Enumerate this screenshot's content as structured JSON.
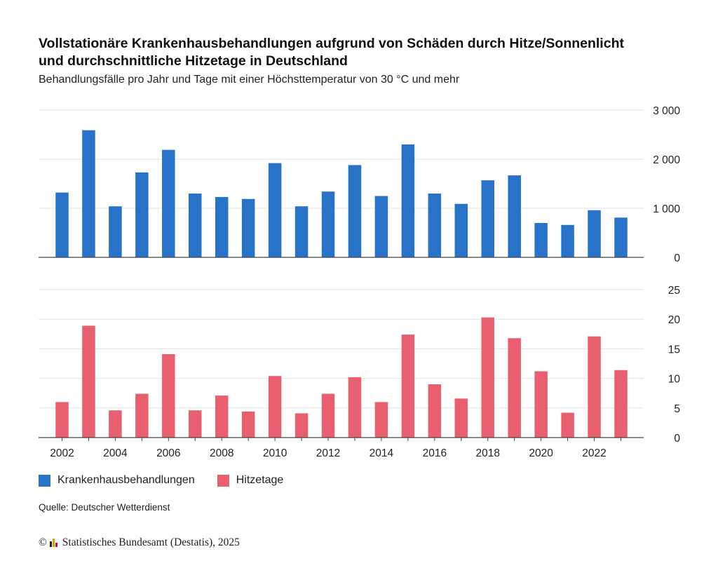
{
  "title_lines": [
    "Vollstationäre Krankenhausbehandlungen aufgrund von Schäden durch Hitze/Sonnenlicht",
    "und durchschnittliche Hitzetage in Deutschland"
  ],
  "subtitle": "Behandlungsfälle pro Jahr und Tage mit einer Höchsttemperatur von 30 °C und mehr",
  "source": "Quelle: Deutscher Wetterdienst",
  "footer": {
    "copyright": "©",
    "text": "Statistisches Bundesamt (Destatis), 2025"
  },
  "colors": {
    "blue": "#2872c8",
    "red": "#e8606f",
    "grid": "#e3e3e3",
    "axis": "#444444"
  },
  "chart_data": [
    {
      "type": "bar",
      "series": [
        {
          "name": "Krankenhausbehandlungen",
          "values": [
            1320,
            2590,
            1040,
            1730,
            2190,
            1300,
            1230,
            1190,
            1920,
            1040,
            1340,
            1880,
            1250,
            2300,
            1300,
            1090,
            1570,
            1670,
            700,
            660,
            960,
            810
          ]
        }
      ],
      "x": [
        2002,
        2003,
        2004,
        2005,
        2006,
        2007,
        2008,
        2009,
        2010,
        2011,
        2012,
        2013,
        2014,
        2015,
        2016,
        2017,
        2018,
        2019,
        2020,
        2021,
        2022,
        2023
      ],
      "ylim": [
        0,
        3000
      ],
      "yticks": [
        0,
        1000,
        2000,
        3000
      ],
      "ytick_labels": [
        "0",
        "1 000",
        "2 000",
        "3 000"
      ],
      "grid": true,
      "y_axis_side": "right"
    },
    {
      "type": "bar",
      "series": [
        {
          "name": "Hitzetage",
          "values": [
            6.0,
            18.9,
            4.6,
            7.4,
            14.1,
            4.6,
            7.1,
            4.4,
            10.4,
            4.1,
            7.4,
            10.2,
            6.0,
            17.4,
            9.0,
            6.6,
            20.3,
            16.8,
            11.2,
            4.2,
            17.1,
            11.4
          ]
        }
      ],
      "x": [
        2002,
        2003,
        2004,
        2005,
        2006,
        2007,
        2008,
        2009,
        2010,
        2011,
        2012,
        2013,
        2014,
        2015,
        2016,
        2017,
        2018,
        2019,
        2020,
        2021,
        2022,
        2023
      ],
      "x_tick_labels": [
        "2002",
        "2004",
        "2006",
        "2008",
        "2010",
        "2012",
        "2014",
        "2016",
        "2018",
        "2020",
        "2022"
      ],
      "ylim": [
        0,
        25
      ],
      "yticks": [
        0,
        5,
        10,
        15,
        20,
        25
      ],
      "ytick_labels": [
        "0",
        "5",
        "10",
        "15",
        "20",
        "25"
      ],
      "grid": true,
      "y_axis_side": "right"
    }
  ],
  "legend": [
    {
      "label": "Krankenhausbehandlungen",
      "color": "#2872c8"
    },
    {
      "label": "Hitzetage",
      "color": "#e8606f"
    }
  ]
}
